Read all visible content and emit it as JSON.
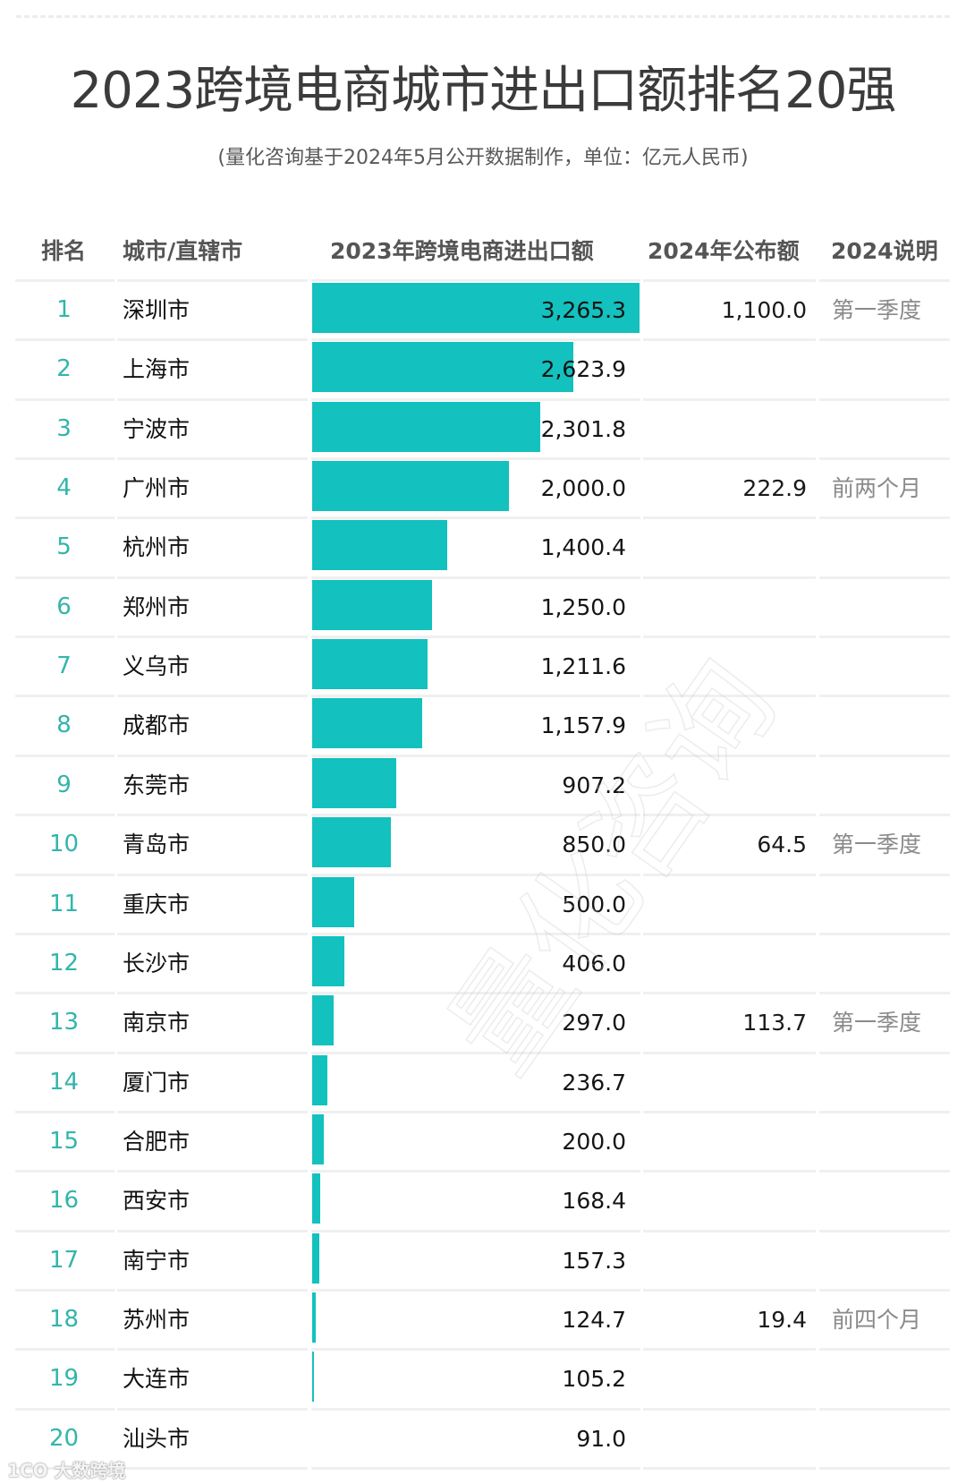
{
  "header": {
    "title": "2023跨境电商城市进出口额排名20强",
    "subtitle": "(量化咨询基于2024年5月公开数据制作，单位：亿元人民币)"
  },
  "columns": {
    "rank": "排名",
    "city": "城市/直辖市",
    "value_2023": "2023年跨境电商进出口额",
    "value_2024": "2024年公布额",
    "note_2024": "2024说明"
  },
  "rows": [
    {
      "rank": "1",
      "city": "深圳市",
      "value_2023": "3,265.3",
      "value_2024": "1,100.0",
      "note_2024": "第一季度"
    },
    {
      "rank": "2",
      "city": "上海市",
      "value_2023": "2,623.9",
      "value_2024": "",
      "note_2024": ""
    },
    {
      "rank": "3",
      "city": "宁波市",
      "value_2023": "2,301.8",
      "value_2024": "",
      "note_2024": ""
    },
    {
      "rank": "4",
      "city": "广州市",
      "value_2023": "2,000.0",
      "value_2024": "222.9",
      "note_2024": "前两个月"
    },
    {
      "rank": "5",
      "city": "杭州市",
      "value_2023": "1,400.4",
      "value_2024": "",
      "note_2024": ""
    },
    {
      "rank": "6",
      "city": "郑州市",
      "value_2023": "1,250.0",
      "value_2024": "",
      "note_2024": ""
    },
    {
      "rank": "7",
      "city": "义乌市",
      "value_2023": "1,211.6",
      "value_2024": "",
      "note_2024": ""
    },
    {
      "rank": "8",
      "city": "成都市",
      "value_2023": "1,157.9",
      "value_2024": "",
      "note_2024": ""
    },
    {
      "rank": "9",
      "city": "东莞市",
      "value_2023": "907.2",
      "value_2024": "",
      "note_2024": ""
    },
    {
      "rank": "10",
      "city": "青岛市",
      "value_2023": "850.0",
      "value_2024": "64.5",
      "note_2024": "第一季度"
    },
    {
      "rank": "11",
      "city": "重庆市",
      "value_2023": "500.0",
      "value_2024": "",
      "note_2024": ""
    },
    {
      "rank": "12",
      "city": "长沙市",
      "value_2023": "406.0",
      "value_2024": "",
      "note_2024": ""
    },
    {
      "rank": "13",
      "city": "南京市",
      "value_2023": "297.0",
      "value_2024": "113.7",
      "note_2024": "第一季度"
    },
    {
      "rank": "14",
      "city": "厦门市",
      "value_2023": "236.7",
      "value_2024": "",
      "note_2024": ""
    },
    {
      "rank": "15",
      "city": "合肥市",
      "value_2023": "200.0",
      "value_2024": "",
      "note_2024": ""
    },
    {
      "rank": "16",
      "city": "西安市",
      "value_2023": "168.4",
      "value_2024": "",
      "note_2024": ""
    },
    {
      "rank": "17",
      "city": "南宁市",
      "value_2023": "157.3",
      "value_2024": "",
      "note_2024": ""
    },
    {
      "rank": "18",
      "city": "苏州市",
      "value_2023": "124.7",
      "value_2024": "19.4",
      "note_2024": "前四个月"
    },
    {
      "rank": "19",
      "city": "大连市",
      "value_2023": "105.2",
      "value_2024": "",
      "note_2024": ""
    },
    {
      "rank": "20",
      "city": "汕头市",
      "value_2023": "91.0",
      "value_2024": "",
      "note_2024": ""
    }
  ],
  "watermark": "量化咨询",
  "logo_text": "1CO 大数跨境",
  "colors": {
    "bar": "#13c1be",
    "rank_text": "#33b5ab",
    "note_text": "#8a8a8a",
    "header_text": "#555555"
  },
  "chart_data": {
    "type": "bar",
    "orientation": "horizontal",
    "title": "2023跨境电商城市进出口额排名20强",
    "subtitle": "(量化咨询基于2024年5月公开数据制作，单位：亿元人民币)",
    "xlabel": "2023年跨境电商进出口额",
    "ylabel": "城市/直辖市",
    "unit": "亿元人民币",
    "categories": [
      "深圳市",
      "上海市",
      "宁波市",
      "广州市",
      "杭州市",
      "郑州市",
      "义乌市",
      "成都市",
      "东莞市",
      "青岛市",
      "重庆市",
      "长沙市",
      "南京市",
      "厦门市",
      "合肥市",
      "西安市",
      "南宁市",
      "苏州市",
      "大连市",
      "汕头市"
    ],
    "series": [
      {
        "name": "2023年跨境电商进出口额",
        "values": [
          3265.3,
          2623.9,
          2301.8,
          2000.0,
          1400.4,
          1250.0,
          1211.6,
          1157.9,
          907.2,
          850.0,
          500.0,
          406.0,
          297.0,
          236.7,
          200.0,
          168.4,
          157.3,
          124.7,
          105.2,
          91.0
        ]
      },
      {
        "name": "2024年公布额",
        "values": [
          1100.0,
          null,
          null,
          222.9,
          null,
          null,
          null,
          null,
          null,
          64.5,
          null,
          null,
          113.7,
          null,
          null,
          null,
          null,
          19.4,
          null,
          null
        ]
      }
    ],
    "notes_2024": [
      "第一季度",
      null,
      null,
      "前两个月",
      null,
      null,
      null,
      null,
      null,
      "第一季度",
      null,
      null,
      "第一季度",
      null,
      null,
      null,
      null,
      "前四个月",
      null,
      null
    ],
    "bar_scale_min": 91.0,
    "bar_scale_max": 3265.3,
    "grid": false,
    "legend": "none"
  }
}
